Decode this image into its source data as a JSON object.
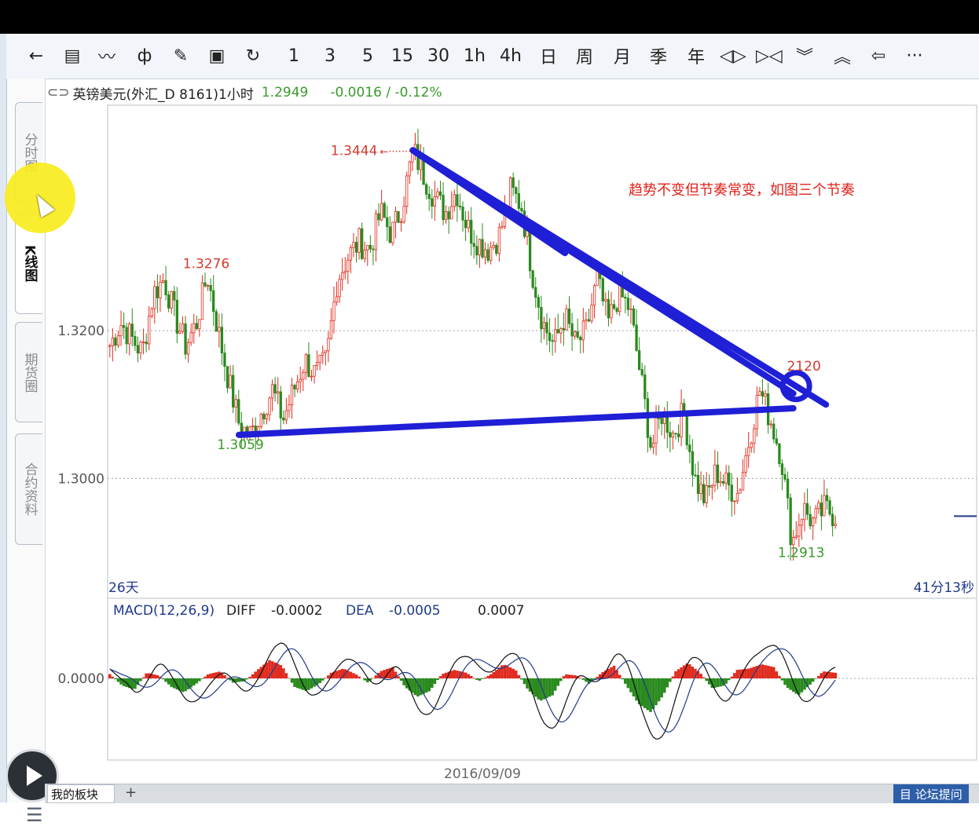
{
  "toolbar": {
    "items": [
      {
        "name": "back-arrow-icon",
        "glyph": "←"
      },
      {
        "name": "list-view-icon",
        "glyph": "▤"
      },
      {
        "name": "line-chart-icon",
        "glyph": "〰"
      },
      {
        "name": "candle-chart-icon",
        "glyph": "ф"
      },
      {
        "name": "draw-tool-icon",
        "glyph": "✎"
      },
      {
        "name": "save-icon",
        "glyph": "▣"
      },
      {
        "name": "refresh-icon",
        "glyph": "↻"
      },
      {
        "name": "period-1m",
        "label": "1"
      },
      {
        "name": "period-3m",
        "label": "3"
      },
      {
        "name": "period-5m",
        "label": "5"
      },
      {
        "name": "period-15m",
        "label": "15"
      },
      {
        "name": "period-30m",
        "label": "30"
      },
      {
        "name": "period-1h",
        "label": "1h"
      },
      {
        "name": "period-4h",
        "label": "4h"
      },
      {
        "name": "period-day",
        "label": "日"
      },
      {
        "name": "period-week",
        "label": "周"
      },
      {
        "name": "period-month",
        "label": "月"
      },
      {
        "name": "period-quarter",
        "label": "季"
      },
      {
        "name": "period-year",
        "label": "年"
      },
      {
        "name": "zoom-in-icon",
        "glyph": "◁▷"
      },
      {
        "name": "zoom-out-icon",
        "glyph": "▷◁"
      },
      {
        "name": "chevron-down-icon",
        "glyph": "︾"
      },
      {
        "name": "chevron-up-icon",
        "glyph": "︽"
      },
      {
        "name": "undo-icon",
        "glyph": "⇦"
      },
      {
        "name": "more-icon",
        "glyph": "···"
      }
    ]
  },
  "sidebar": {
    "tabs": [
      {
        "name": "tab-time-sharing",
        "label": "分时图",
        "active": false
      },
      {
        "name": "tab-k-line",
        "label": "K线图",
        "active": true
      },
      {
        "name": "tab-futures",
        "label": "期货圈",
        "active": false
      },
      {
        "name": "tab-contract-info",
        "label": "合约资料",
        "active": false
      }
    ]
  },
  "info": {
    "symbol": "英镑美元(外汇_D 8161)1小时",
    "price": "1.2949",
    "change": "-0.0016 / -0.12%"
  },
  "chart_data": {
    "type": "candlestick",
    "symbol": "英镑美元(外汇_D 8161)1小时",
    "ylim": [
      1.284,
      1.3505
    ],
    "y_ticks": [
      {
        "value": 1.32,
        "label": "1.3200"
      },
      {
        "value": 1.3,
        "label": "1.3000"
      }
    ],
    "price_path": [
      1.318,
      1.321,
      1.319,
      1.317,
      1.325,
      1.327,
      1.322,
      1.318,
      1.321,
      1.3276,
      1.32,
      1.313,
      1.307,
      1.3059,
      1.309,
      1.312,
      1.308,
      1.312,
      1.316,
      1.314,
      1.316,
      1.327,
      1.33,
      1.332,
      1.331,
      1.336,
      1.333,
      1.337,
      1.3444,
      1.341,
      1.338,
      1.336,
      1.339,
      1.334,
      1.332,
      1.331,
      1.333,
      1.339,
      1.337,
      1.328,
      1.321,
      1.318,
      1.322,
      1.318,
      1.32,
      1.327,
      1.321,
      1.325,
      1.323,
      1.314,
      1.304,
      1.309,
      1.306,
      1.309,
      1.3,
      1.297,
      1.301,
      1.299,
      1.298,
      1.305,
      1.312,
      1.308,
      1.303,
      1.2913,
      1.296,
      1.294,
      1.296,
      1.295
    ],
    "annotations": {
      "high": "1.3444",
      "left_high": "1.3276",
      "low_left": "1.3059",
      "retest": "2120",
      "low_right": "1.2913",
      "note": "趋势不变但节奏常变，如图三个节奏"
    },
    "timeframe_label": "26天",
    "countdown": "41分13秒",
    "date_label": "2016/09/09",
    "macd": {
      "label": "MACD(12,26,9)",
      "diff_label": "DIFF",
      "diff": "-0.0002",
      "dea_label": "DEA",
      "dea": "-0.0005",
      "macd_value": "0.0007",
      "zero_label": "0.0000",
      "hist_path": [
        0.3,
        -0.5,
        -0.8,
        0.4,
        0.2,
        -0.6,
        -1.0,
        -0.4,
        0.3,
        0.5,
        -0.3,
        -0.2,
        0.6,
        1.3,
        0.9,
        -0.6,
        -0.9,
        -0.4,
        0.4,
        0.7,
        0.3,
        -0.3,
        0.5,
        0.8,
        -0.6,
        -1.3,
        -0.9,
        0.3,
        0.6,
        0.4,
        -0.2,
        0.3,
        1.0,
        0.6,
        -0.8,
        -1.6,
        -1.2,
        0.3,
        0.2,
        -0.4,
        0.4,
        0.9,
        -0.5,
        -1.8,
        -2.4,
        -1.2,
        0.5,
        1.1,
        0.4,
        -0.7,
        -0.5,
        0.6,
        0.7,
        1.0,
        0.8,
        -0.6,
        -1.2,
        -0.4,
        0.5,
        0.4
      ],
      "colors": {
        "up": "#e02b1e",
        "down": "#2a8a1e"
      }
    },
    "trendlines": {
      "color": "#1f1fd6",
      "lines": [
        {
          "x": [
            "t28",
            "t42"
          ],
          "y": [
            1.3444,
            1.3305
          ]
        },
        {
          "x": [
            "t28",
            "t63"
          ],
          "y": [
            1.3444,
            1.3115
          ]
        },
        {
          "x": [
            "t28",
            "t66"
          ],
          "y": [
            1.3444,
            1.31
          ]
        },
        {
          "x": [
            "t12",
            "t63"
          ],
          "y": [
            1.3059,
            1.3095
          ]
        }
      ]
    },
    "colors": {
      "up": "#e02b1e",
      "down": "#2a8a1e",
      "grid": "#9aa4ae"
    }
  },
  "bottom": {
    "tab_label": "我的板块",
    "plus": "+",
    "right_label": "目 论坛提问"
  }
}
